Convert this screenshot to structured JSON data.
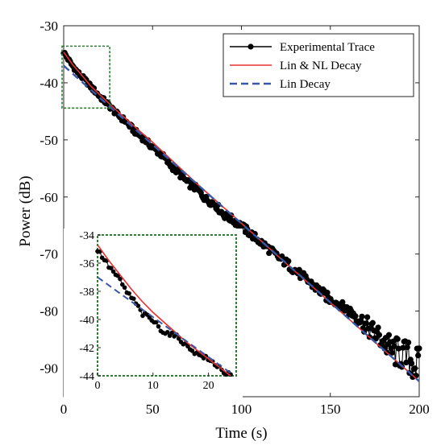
{
  "chart_data": [
    {
      "type": "line",
      "title": "",
      "xlabel": "Time (s)",
      "ylabel": "Power (dB)",
      "xlim": [
        0,
        200
      ],
      "ylim": [
        -95,
        -30
      ],
      "xticks": [
        0,
        50,
        100,
        150,
        200
      ],
      "yticks": [
        -30,
        -40,
        -50,
        -60,
        -70,
        -80,
        -90
      ],
      "grid": false,
      "legend_position": "top-right",
      "series": [
        {
          "name": "Experimental Trace",
          "color": "#000000",
          "style": "line-with-markers",
          "x": [
            0,
            2,
            4,
            6,
            8,
            10,
            12,
            15,
            18,
            20,
            25,
            30,
            35,
            40,
            45,
            50,
            55,
            60,
            65,
            70,
            75,
            80,
            85,
            90,
            95,
            100,
            105,
            110,
            115,
            120,
            125,
            130,
            135,
            140,
            145,
            150,
            155,
            160,
            165,
            170,
            175,
            180,
            185,
            190,
            195,
            200
          ],
          "y": [
            -34.6,
            -35.6,
            -36.6,
            -37.4,
            -38.2,
            -38.9,
            -39.5,
            -40.6,
            -41.6,
            -42.3,
            -43.8,
            -45.5,
            -46.8,
            -48.5,
            -49.8,
            -51.3,
            -52.6,
            -54.4,
            -55.9,
            -57.6,
            -58.6,
            -60.4,
            -61.2,
            -63.1,
            -64.0,
            -65.1,
            -66.4,
            -67.7,
            -69.0,
            -70.4,
            -71.5,
            -72.8,
            -74.1,
            -75.4,
            -76.7,
            -78.0,
            -78.8,
            -79.8,
            -80.9,
            -82.5,
            -83.9,
            -85.3,
            -87.0,
            -87.5,
            -88.5,
            -89.9
          ]
        },
        {
          "name": "Lin & NL Decay",
          "color": "#e8302f",
          "style": "solid",
          "x": [
            0,
            5,
            10,
            15,
            20,
            30,
            40,
            50,
            75,
            100,
            125,
            150,
            175,
            200
          ],
          "y": [
            -34.6,
            -36.8,
            -38.6,
            -40.5,
            -42.0,
            -44.9,
            -47.7,
            -50.4,
            -57.7,
            -64.6,
            -71.6,
            -78.5,
            -85.4,
            -92.3
          ]
        },
        {
          "name": "Lin Decay",
          "color": "#3a57a6",
          "style": "dashed",
          "x": [
            0,
            200
          ],
          "y": [
            -37.0,
            -92.3
          ]
        }
      ]
    },
    {
      "type": "line",
      "title": "",
      "xlabel": "",
      "ylabel": "",
      "xlim": [
        0,
        25
      ],
      "ylim": [
        -44,
        -34
      ],
      "xticks": [
        0,
        10,
        20
      ],
      "yticks": [
        -34,
        -36,
        -38,
        -40,
        -42,
        -44
      ],
      "grid": false,
      "series": [
        {
          "name": "Experimental Trace",
          "color": "#000000",
          "style": "line-with-markers",
          "x": [
            0,
            1,
            2,
            3,
            4,
            5,
            6,
            7,
            8,
            9,
            10,
            11,
            12,
            13,
            14,
            15,
            16,
            17,
            18,
            19,
            20,
            21,
            22,
            23,
            24
          ],
          "y": [
            -35.1,
            -35.6,
            -36.2,
            -36.7,
            -37.2,
            -37.9,
            -38.4,
            -38.9,
            -39.6,
            -39.8,
            -40.1,
            -40.5,
            -40.9,
            -41.0,
            -41.2,
            -41.4,
            -41.9,
            -42.1,
            -42.5,
            -42.6,
            -42.9,
            -43.1,
            -43.4,
            -43.8,
            -44.0
          ]
        },
        {
          "name": "Lin & NL Decay",
          "color": "#e8302f",
          "style": "solid",
          "x": [
            0,
            2,
            4,
            6,
            8,
            10,
            12,
            14,
            16,
            18,
            20,
            22,
            24
          ],
          "y": [
            -34.7,
            -35.8,
            -36.8,
            -37.8,
            -38.7,
            -39.5,
            -40.2,
            -40.9,
            -41.6,
            -42.2,
            -42.8,
            -43.4,
            -44.0
          ]
        },
        {
          "name": "Lin Decay",
          "color": "#3a57a6",
          "style": "dashed",
          "x": [
            0,
            24
          ],
          "y": [
            -37.0,
            -43.8
          ]
        }
      ]
    }
  ]
}
